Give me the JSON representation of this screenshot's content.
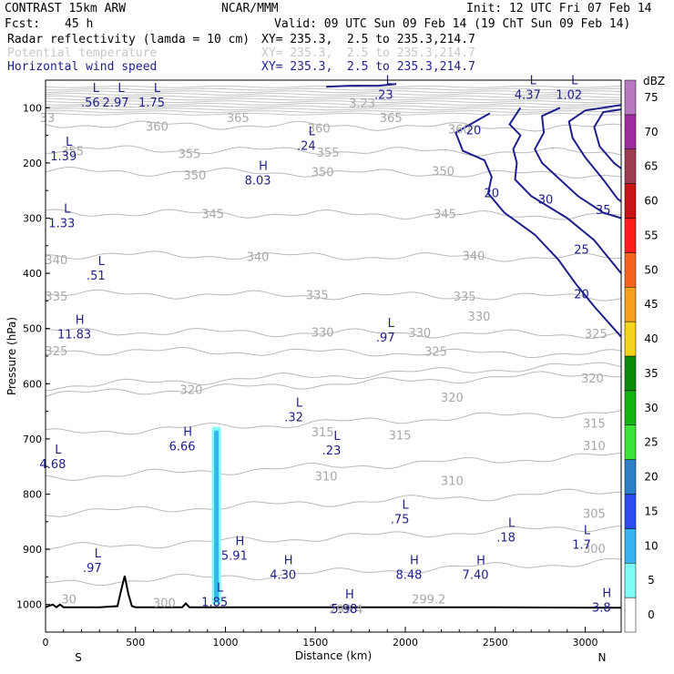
{
  "header": {
    "model": "CONTRAST 15km ARW",
    "center": "NCAR/MMM",
    "init": "Init: 12 UTC Fri 07 Feb 14",
    "fcst_label": "Fcst:",
    "fcst_value": "45 h",
    "valid": "Valid: 09 UTC Sun 09 Feb 14 (19 ChT Sun 09 Feb 14)",
    "fields": [
      {
        "name": "Radar reflectivity (lamda = 10 cm)",
        "xy": "XY= 235.3,  2.5 to 235.3,214.7",
        "color": "#000000"
      },
      {
        "name": "Potential temperature",
        "xy": "XY= 235.3,  2.5 to 235.3,214.7",
        "color": "#c8c8c8"
      },
      {
        "name": "Horizontal wind speed",
        "xy": "XY= 235.3,  2.5 to 235.3,214.7",
        "color": "#1f1f8c"
      }
    ]
  },
  "chart_data": {
    "type": "cross-section",
    "xlabel": "Distance (km)",
    "ylabel": "Pressure (hPa)",
    "xlim": [
      0,
      3200
    ],
    "ylim": [
      1050,
      50
    ],
    "x_ticks": [
      "0",
      "500",
      "1000",
      "1500",
      "2000",
      "2500",
      "3000"
    ],
    "y_ticks": [
      "100",
      "200",
      "300",
      "400",
      "500",
      "600",
      "700",
      "800",
      "900",
      "1000"
    ],
    "x_tick_values": [
      0,
      500,
      1000,
      1500,
      2000,
      2500,
      3000
    ],
    "y_tick_values": [
      100,
      200,
      300,
      400,
      500,
      600,
      700,
      800,
      900,
      1000
    ],
    "endpoints": {
      "left": "S",
      "right": "N"
    },
    "colorbar": {
      "unit": "dBZ",
      "levels": [
        "0",
        "5",
        "10",
        "15",
        "20",
        "25",
        "30",
        "35",
        "40",
        "45",
        "50",
        "55",
        "60",
        "65",
        "70",
        "75"
      ],
      "colors": [
        "#ffffff",
        "#7ffcf8",
        "#36b4f0",
        "#2a4cf0",
        "#2b80c8",
        "#3de238",
        "#14b414",
        "#0a8c0a",
        "#f5d21e",
        "#f5a01e",
        "#f5641e",
        "#ff1e1e",
        "#c81414",
        "#a03c50",
        "#9e2ea0",
        "#b878c0"
      ]
    },
    "theta_labels": [
      {
        "text": "33",
        "x": 10,
        "p": 118
      },
      {
        "text": "360",
        "x": 620,
        "p": 133
      },
      {
        "text": "365",
        "x": 1070,
        "p": 118
      },
      {
        "text": "365",
        "x": 1920,
        "p": 118
      },
      {
        "text": "360",
        "x": 1520,
        "p": 137
      },
      {
        "text": "360",
        "x": 2300,
        "p": 138
      },
      {
        "text": "355",
        "x": 150,
        "p": 178
      },
      {
        "text": "355",
        "x": 800,
        "p": 183
      },
      {
        "text": "355",
        "x": 1570,
        "p": 180
      },
      {
        "text": "350",
        "x": 830,
        "p": 222
      },
      {
        "text": "350",
        "x": 1540,
        "p": 216
      },
      {
        "text": "350",
        "x": 2210,
        "p": 214
      },
      {
        "text": "345",
        "x": 930,
        "p": 292
      },
      {
        "text": "345",
        "x": 2220,
        "p": 292
      },
      {
        "text": "340",
        "x": 60,
        "p": 375
      },
      {
        "text": "340",
        "x": 1180,
        "p": 369
      },
      {
        "text": "340",
        "x": 2380,
        "p": 368
      },
      {
        "text": "335",
        "x": 60,
        "p": 441
      },
      {
        "text": "335",
        "x": 1510,
        "p": 439
      },
      {
        "text": "335",
        "x": 2330,
        "p": 441
      },
      {
        "text": "330",
        "x": 1540,
        "p": 506
      },
      {
        "text": "330",
        "x": 2080,
        "p": 507
      },
      {
        "text": "330",
        "x": 2410,
        "p": 477
      },
      {
        "text": "325",
        "x": 60,
        "p": 540
      },
      {
        "text": "325",
        "x": 2170,
        "p": 541
      },
      {
        "text": "325",
        "x": 3060,
        "p": 509
      },
      {
        "text": "320",
        "x": 810,
        "p": 610
      },
      {
        "text": "320",
        "x": 2260,
        "p": 624
      },
      {
        "text": "320",
        "x": 3040,
        "p": 590
      },
      {
        "text": "315",
        "x": 1540,
        "p": 687
      },
      {
        "text": "315",
        "x": 1970,
        "p": 693
      },
      {
        "text": "315",
        "x": 3050,
        "p": 671
      },
      {
        "text": "310",
        "x": 1560,
        "p": 767
      },
      {
        "text": "310",
        "x": 2260,
        "p": 775
      },
      {
        "text": "310",
        "x": 3050,
        "p": 712
      },
      {
        "text": "305",
        "x": 3050,
        "p": 835
      },
      {
        "text": "300",
        "x": 3050,
        "p": 898
      },
      {
        "text": "30",
        "x": 130,
        "p": 990
      },
      {
        "text": "300",
        "x": 660,
        "p": 996
      },
      {
        "text": "299.2",
        "x": 2130,
        "p": 990
      },
      {
        "text": "299.4",
        "x": 1670,
        "p": 1008
      }
    ],
    "extrema": [
      {
        "letter": "L",
        "value": ".56",
        "x": 250,
        "p": 85
      },
      {
        "letter": "L",
        "value": "2.97",
        "x": 390,
        "p": 85
      },
      {
        "letter": "L",
        "value": "1.75",
        "x": 590,
        "p": 85
      },
      {
        "letter": "L",
        "value": ".23",
        "x": 1880,
        "p": 71
      },
      {
        "text_only": true,
        "value": "3.23",
        "x": 1760,
        "p": 91
      },
      {
        "letter": "L",
        "value": "4.37",
        "x": 2680,
        "p": 71
      },
      {
        "letter": "L",
        "value": "1.02",
        "x": 2910,
        "p": 71
      },
      {
        "letter": "L",
        "value": ".24",
        "x": 1450,
        "p": 163
      },
      {
        "letter": "L",
        "value": "1.39",
        "x": 100,
        "p": 182
      },
      {
        "letter": "H",
        "value": "8.03",
        "x": 1180,
        "p": 226
      },
      {
        "letter": "L",
        "value": "1.33",
        "x": 90,
        "p": 303
      },
      {
        "letter": "L",
        "value": ".51",
        "x": 280,
        "p": 398
      },
      {
        "letter": "H",
        "value": "11.83",
        "x": 160,
        "p": 505
      },
      {
        "letter": "L",
        "value": ".97",
        "x": 1890,
        "p": 510
      },
      {
        "letter": "L",
        "value": ".32",
        "x": 1380,
        "p": 655
      },
      {
        "letter": "H",
        "value": "6.66",
        "x": 760,
        "p": 708
      },
      {
        "letter": "L",
        "value": ".23",
        "x": 1590,
        "p": 715
      },
      {
        "letter": "L",
        "value": "4.68",
        "x": 40,
        "p": 740
      },
      {
        "letter": "L",
        "value": ".75",
        "x": 1970,
        "p": 840
      },
      {
        "letter": "L",
        "value": ".18",
        "x": 2560,
        "p": 873
      },
      {
        "letter": "L",
        "value": "1.7",
        "x": 2980,
        "p": 886
      },
      {
        "letter": "L",
        "value": ".97",
        "x": 260,
        "p": 928
      },
      {
        "letter": "H",
        "value": "5.91",
        "x": 1050,
        "p": 906
      },
      {
        "letter": "H",
        "value": "4.30",
        "x": 1320,
        "p": 940
      },
      {
        "letter": "H",
        "value": "8.48",
        "x": 2020,
        "p": 940
      },
      {
        "letter": "H",
        "value": "7.40",
        "x": 2390,
        "p": 940
      },
      {
        "letter": "L",
        "value": "1.85",
        "x": 940,
        "p": 990
      },
      {
        "letter": "H",
        "value": "5.98",
        "x": 1660,
        "p": 1002
      },
      {
        "letter": "H",
        "value": "3.8",
        "x": 3090,
        "p": 1000
      }
    ],
    "wind_labels": [
      {
        "text": "20",
        "x": 2380,
        "p": 140
      },
      {
        "text": "20",
        "x": 2480,
        "p": 254
      },
      {
        "text": "30",
        "x": 2780,
        "p": 265
      },
      {
        "text": "35",
        "x": 3100,
        "p": 284
      },
      {
        "text": "25",
        "x": 2980,
        "p": 356
      },
      {
        "text": "20",
        "x": 2980,
        "p": 437
      }
    ],
    "wind_isotachs": [
      {
        "speed": 20,
        "points": [
          [
            1560,
            62
          ],
          [
            1700,
            60
          ],
          [
            1850,
            60
          ],
          [
            1950,
            57
          ]
        ]
      },
      {
        "speed": 20,
        "points": [
          [
            2470,
            110
          ],
          [
            2280,
            145
          ],
          [
            2320,
            178
          ],
          [
            2440,
            195
          ],
          [
            2480,
            225
          ],
          [
            2460,
            255
          ],
          [
            2550,
            290
          ],
          [
            2720,
            330
          ],
          [
            2850,
            375
          ],
          [
            2950,
            420
          ],
          [
            3050,
            460
          ],
          [
            3200,
            515
          ]
        ]
      },
      {
        "speed": 25,
        "points": [
          [
            2640,
            100
          ],
          [
            2580,
            130
          ],
          [
            2640,
            150
          ],
          [
            2600,
            175
          ],
          [
            2620,
            200
          ],
          [
            2610,
            230
          ],
          [
            2700,
            260
          ],
          [
            2900,
            300
          ],
          [
            3050,
            340
          ],
          [
            3200,
            400
          ]
        ]
      },
      {
        "speed": 30,
        "points": [
          [
            2860,
            100
          ],
          [
            2760,
            115
          ],
          [
            2770,
            145
          ],
          [
            2720,
            175
          ],
          [
            2760,
            200
          ],
          [
            2860,
            230
          ],
          [
            2960,
            260
          ],
          [
            3100,
            290
          ],
          [
            3200,
            300
          ]
        ]
      },
      {
        "speed": 35,
        "points": [
          [
            3200,
            95
          ],
          [
            3000,
            105
          ],
          [
            2910,
            125
          ],
          [
            2930,
            155
          ],
          [
            3000,
            190
          ],
          [
            3100,
            230
          ],
          [
            3180,
            265
          ],
          [
            3200,
            270
          ]
        ]
      },
      {
        "speed": 40,
        "points": [
          [
            3200,
            103
          ],
          [
            3100,
            108
          ],
          [
            3050,
            135
          ],
          [
            3080,
            170
          ],
          [
            3160,
            200
          ],
          [
            3200,
            210
          ]
        ]
      }
    ],
    "reflectivity_column": {
      "x": 950,
      "p_top": 678,
      "p_bottom": 1000,
      "dbz": 10
    }
  }
}
